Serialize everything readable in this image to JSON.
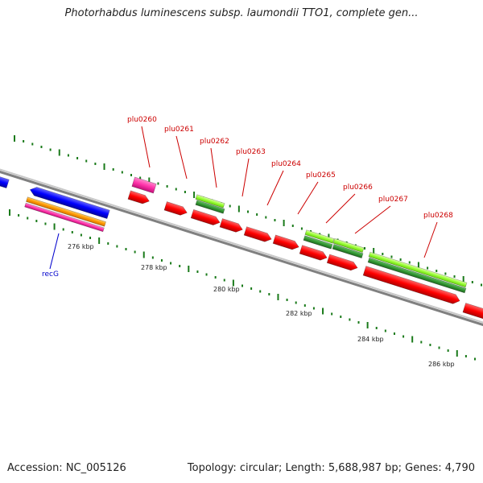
{
  "title": "Photorhabdus luminescens subsp. laumondii TTO1, complete gen...",
  "footer": {
    "accession": "Accession: NC_005126",
    "summary": "Topology: circular; Length: 5,688,987 bp; Genes: 4,790"
  },
  "ruler_labels": [
    "276 kbp",
    "278 kbp",
    "280 kbp",
    "282 kbp",
    "284 kbp",
    "286 kbp"
  ],
  "gene_labels": [
    {
      "text": "plu0260",
      "color": "#cc0000"
    },
    {
      "text": "plu0261",
      "color": "#cc0000"
    },
    {
      "text": "plu0262",
      "color": "#cc0000"
    },
    {
      "text": "plu0263",
      "color": "#cc0000"
    },
    {
      "text": "plu0264",
      "color": "#cc0000"
    },
    {
      "text": "plu0265",
      "color": "#cc0000"
    },
    {
      "text": "plu0266",
      "color": "#cc0000"
    },
    {
      "text": "plu0267",
      "color": "#cc0000"
    },
    {
      "text": "plu0268",
      "color": "#cc0000"
    },
    {
      "text": "recG",
      "color": "#0000cc"
    }
  ],
  "colors": {
    "backbone": "#808080",
    "forward_gene": "#ff0000",
    "reverse_gene": "#0000ff",
    "pink_feature": "#ff33aa",
    "orange_feature": "#ff9900",
    "light_green_feature": "#99ff33",
    "dark_green_feature": "#339933",
    "tick": "#1a7a1a"
  }
}
